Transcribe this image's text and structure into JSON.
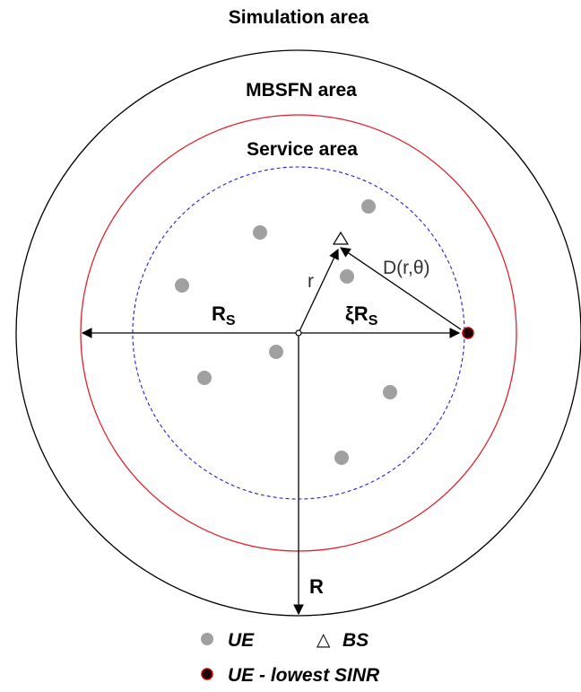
{
  "labels": {
    "simulation_area": "Simulation area",
    "mbsfn_area": "MBSFN area",
    "service_area": "Service area",
    "r_s": "R",
    "r_s_sub": "S",
    "xi_r_s": "ξR",
    "xi_r_s_sub": "S",
    "r_small": "r",
    "distance": "D(r,θ)",
    "r_big": "R"
  },
  "legend": {
    "ue": "UE",
    "bs": "BS",
    "bs_symbol": "△",
    "ue_lowest": "UE - lowest SINR"
  },
  "colors": {
    "simulation_circle": "#000000",
    "mbsfn_circle": "#e0202a",
    "service_circle": "#2020e0",
    "ue_dot": "#a0a0a0",
    "lowest_dot_fill": "#1a0000",
    "lowest_dot_stroke": "#c00000"
  }
}
